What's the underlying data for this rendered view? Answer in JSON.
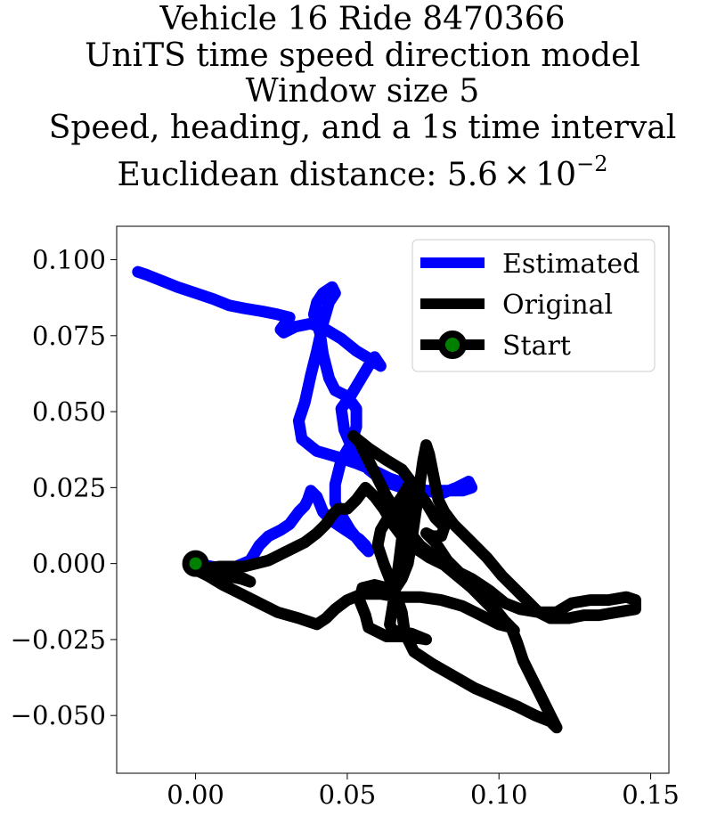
{
  "chart_data": {
    "type": "line",
    "title_lines": [
      "Vehicle 16 Ride 8470366",
      "UniTS time speed direction model",
      "Window size 5",
      "Speed, heading, and a 1s time interval"
    ],
    "title_metric": {
      "prefix": "Euclidean distance: ",
      "mantissa": "5.6",
      "times": "×",
      "base": "10",
      "exponent": "−2"
    },
    "xlabel": "",
    "ylabel": "",
    "xlim": [
      -0.026,
      0.156
    ],
    "ylim": [
      -0.069,
      0.111
    ],
    "x_ticks": [
      0.0,
      0.05,
      0.1,
      0.15
    ],
    "x_tick_labels": [
      "0.00",
      "0.05",
      "0.10",
      "0.15"
    ],
    "y_ticks": [
      -0.05,
      -0.025,
      0.0,
      0.025,
      0.05,
      0.075,
      0.1
    ],
    "y_tick_labels": [
      "−0.050",
      "−0.025",
      "0.000",
      "0.025",
      "0.050",
      "0.075",
      "0.100"
    ],
    "grid": false,
    "legend": {
      "position": "upper right",
      "entries": [
        "Estimated",
        "Original",
        "Start"
      ]
    },
    "colors": {
      "estimated": "#0000ff",
      "original": "#000000",
      "start_fill": "#008000",
      "start_edge": "#000000"
    },
    "series": [
      {
        "name": "Estimated",
        "points": [
          [
            0.0,
            0.0
          ],
          [
            0.011,
            -0.002
          ],
          [
            0.018,
            0.001
          ],
          [
            0.021,
            0.006
          ],
          [
            0.024,
            0.009
          ],
          [
            0.028,
            0.011
          ],
          [
            0.031,
            0.013
          ],
          [
            0.034,
            0.017
          ],
          [
            0.036,
            0.019
          ],
          [
            0.037,
            0.021
          ],
          [
            0.038,
            0.024
          ],
          [
            0.04,
            0.022
          ],
          [
            0.042,
            0.017
          ],
          [
            0.045,
            0.014
          ],
          [
            0.048,
            0.012
          ],
          [
            0.051,
            0.01
          ],
          [
            0.054,
            0.008
          ],
          [
            0.056,
            0.006
          ],
          [
            0.057,
            0.004
          ],
          [
            0.055,
            0.006
          ],
          [
            0.051,
            0.011
          ],
          [
            0.048,
            0.016
          ],
          [
            0.046,
            0.02
          ],
          [
            0.046,
            0.026
          ],
          [
            0.048,
            0.034
          ],
          [
            0.051,
            0.039
          ],
          [
            0.053,
            0.045
          ],
          [
            0.053,
            0.051
          ],
          [
            0.05,
            0.055
          ],
          [
            0.046,
            0.057
          ],
          [
            0.044,
            0.061
          ],
          [
            0.042,
            0.069
          ],
          [
            0.041,
            0.076
          ],
          [
            0.039,
            0.082
          ],
          [
            0.04,
            0.086
          ],
          [
            0.042,
            0.089
          ],
          [
            0.045,
            0.091
          ],
          [
            0.046,
            0.089
          ],
          [
            0.044,
            0.086
          ],
          [
            0.042,
            0.079
          ],
          [
            0.04,
            0.07
          ],
          [
            0.038,
            0.062
          ],
          [
            0.036,
            0.053
          ],
          [
            0.034,
            0.047
          ],
          [
            0.035,
            0.041
          ],
          [
            0.04,
            0.037
          ],
          [
            0.047,
            0.035
          ],
          [
            0.053,
            0.033
          ],
          [
            0.058,
            0.031
          ],
          [
            0.064,
            0.028
          ],
          [
            0.07,
            0.026
          ],
          [
            0.076,
            0.024
          ],
          [
            0.081,
            0.023
          ],
          [
            0.086,
            0.025
          ],
          [
            0.09,
            0.027
          ],
          [
            0.091,
            0.025
          ],
          [
            0.088,
            0.024
          ],
          [
            0.082,
            0.024
          ],
          [
            0.075,
            0.024
          ],
          [
            0.068,
            0.025
          ],
          [
            0.062,
            0.027
          ],
          [
            0.057,
            0.031
          ],
          [
            0.052,
            0.037
          ],
          [
            0.049,
            0.044
          ],
          [
            0.048,
            0.051
          ],
          [
            0.051,
            0.055
          ],
          [
            0.054,
            0.06
          ],
          [
            0.057,
            0.065
          ],
          [
            0.059,
            0.068
          ],
          [
            0.061,
            0.065
          ],
          [
            0.058,
            0.067
          ],
          [
            0.053,
            0.07
          ],
          [
            0.048,
            0.074
          ],
          [
            0.043,
            0.077
          ],
          [
            0.038,
            0.079
          ],
          [
            0.033,
            0.078
          ],
          [
            0.029,
            0.076
          ],
          [
            0.028,
            0.077
          ],
          [
            0.031,
            0.081
          ],
          [
            0.027,
            0.082
          ],
          [
            0.022,
            0.083
          ],
          [
            0.016,
            0.084
          ],
          [
            0.011,
            0.085
          ],
          [
            0.006,
            0.087
          ],
          [
            0.0,
            0.089
          ],
          [
            -0.006,
            0.091
          ],
          [
            -0.011,
            0.093
          ],
          [
            -0.016,
            0.095
          ],
          [
            -0.019,
            0.096
          ]
        ]
      },
      {
        "name": "Original",
        "points": [
          [
            0.0,
            0.0
          ],
          [
            0.006,
            -0.002
          ],
          [
            0.011,
            -0.003
          ],
          [
            0.016,
            -0.005
          ],
          [
            0.018,
            -0.006
          ],
          [
            0.015,
            -0.005
          ],
          [
            0.01,
            -0.004
          ],
          [
            0.005,
            -0.003
          ],
          [
            0.0,
            -0.002
          ],
          [
            0.008,
            -0.001
          ],
          [
            0.016,
            -0.001
          ],
          [
            0.024,
            0.001
          ],
          [
            0.03,
            0.004
          ],
          [
            0.036,
            0.007
          ],
          [
            0.04,
            0.01
          ],
          [
            0.043,
            0.013
          ],
          [
            0.045,
            0.016
          ],
          [
            0.047,
            0.018
          ],
          [
            0.05,
            0.018
          ],
          [
            0.053,
            0.021
          ],
          [
            0.056,
            0.025
          ],
          [
            0.059,
            0.022
          ],
          [
            0.062,
            0.018
          ],
          [
            0.065,
            0.013
          ],
          [
            0.068,
            0.009
          ],
          [
            0.071,
            0.006
          ],
          [
            0.074,
            0.004
          ],
          [
            0.077,
            0.002
          ],
          [
            0.081,
            0.0
          ],
          [
            0.085,
            -0.002
          ],
          [
            0.091,
            -0.005
          ],
          [
            0.097,
            -0.009
          ],
          [
            0.102,
            -0.013
          ],
          [
            0.107,
            -0.015
          ],
          [
            0.113,
            -0.016
          ],
          [
            0.119,
            -0.016
          ],
          [
            0.124,
            -0.013
          ],
          [
            0.13,
            -0.012
          ],
          [
            0.136,
            -0.012
          ],
          [
            0.142,
            -0.011
          ],
          [
            0.145,
            -0.012
          ],
          [
            0.145,
            -0.015
          ],
          [
            0.139,
            -0.016
          ],
          [
            0.133,
            -0.017
          ],
          [
            0.128,
            -0.017
          ],
          [
            0.123,
            -0.018
          ],
          [
            0.117,
            -0.018
          ],
          [
            0.113,
            -0.016
          ],
          [
            0.11,
            -0.013
          ],
          [
            0.106,
            -0.009
          ],
          [
            0.101,
            -0.004
          ],
          [
            0.096,
            0.002
          ],
          [
            0.09,
            0.008
          ],
          [
            0.085,
            0.013
          ],
          [
            0.082,
            0.017
          ],
          [
            0.08,
            0.021
          ],
          [
            0.079,
            0.026
          ],
          [
            0.078,
            0.031
          ],
          [
            0.077,
            0.036
          ],
          [
            0.076,
            0.039
          ],
          [
            0.075,
            0.034
          ],
          [
            0.074,
            0.027
          ],
          [
            0.073,
            0.02
          ],
          [
            0.072,
            0.013
          ],
          [
            0.071,
            0.006
          ],
          [
            0.07,
            0.0
          ],
          [
            0.068,
            -0.005
          ],
          [
            0.066,
            -0.008
          ],
          [
            0.063,
            -0.008
          ],
          [
            0.059,
            -0.007
          ],
          [
            0.055,
            -0.008
          ],
          [
            0.054,
            -0.012
          ],
          [
            0.056,
            -0.017
          ],
          [
            0.057,
            -0.021
          ],
          [
            0.063,
            -0.024
          ],
          [
            0.07,
            -0.024
          ],
          [
            0.076,
            -0.025
          ],
          [
            0.071,
            -0.023
          ],
          [
            0.065,
            -0.022
          ],
          [
            0.064,
            -0.02
          ],
          [
            0.065,
            -0.014
          ],
          [
            0.066,
            -0.007
          ],
          [
            0.067,
            0.0
          ],
          [
            0.068,
            0.008
          ],
          [
            0.069,
            0.014
          ],
          [
            0.07,
            0.02
          ],
          [
            0.073,
            0.024
          ],
          [
            0.076,
            0.02
          ],
          [
            0.079,
            0.015
          ],
          [
            0.082,
            0.012
          ],
          [
            0.081,
            0.009
          ],
          [
            0.078,
            0.009
          ],
          [
            0.076,
            0.01
          ],
          [
            0.079,
            0.007
          ],
          [
            0.083,
            0.001
          ],
          [
            0.088,
            -0.004
          ],
          [
            0.093,
            -0.009
          ],
          [
            0.098,
            -0.014
          ],
          [
            0.102,
            -0.019
          ],
          [
            0.105,
            -0.022
          ],
          [
            0.101,
            -0.018
          ],
          [
            0.096,
            -0.013
          ],
          [
            0.091,
            -0.008
          ],
          [
            0.085,
            -0.003
          ],
          [
            0.079,
            0.002
          ],
          [
            0.074,
            0.006
          ],
          [
            0.07,
            0.011
          ],
          [
            0.067,
            0.016
          ],
          [
            0.063,
            0.022
          ],
          [
            0.06,
            0.028
          ],
          [
            0.057,
            0.034
          ],
          [
            0.054,
            0.04
          ],
          [
            0.052,
            0.042
          ],
          [
            0.057,
            0.038
          ],
          [
            0.063,
            0.034
          ],
          [
            0.068,
            0.031
          ],
          [
            0.071,
            0.027
          ],
          [
            0.068,
            0.022
          ],
          [
            0.064,
            0.016
          ],
          [
            0.061,
            0.011
          ],
          [
            0.06,
            0.006
          ],
          [
            0.062,
            0.0
          ],
          [
            0.064,
            -0.005
          ],
          [
            0.066,
            -0.01
          ],
          [
            0.068,
            -0.016
          ],
          [
            0.069,
            -0.023
          ],
          [
            0.072,
            -0.029
          ],
          [
            0.078,
            -0.033
          ],
          [
            0.085,
            -0.037
          ],
          [
            0.092,
            -0.041
          ],
          [
            0.099,
            -0.044
          ],
          [
            0.106,
            -0.047
          ],
          [
            0.112,
            -0.05
          ],
          [
            0.117,
            -0.052
          ],
          [
            0.119,
            -0.054
          ],
          [
            0.117,
            -0.05
          ],
          [
            0.114,
            -0.044
          ],
          [
            0.111,
            -0.038
          ],
          [
            0.108,
            -0.032
          ],
          [
            0.106,
            -0.026
          ],
          [
            0.104,
            -0.021
          ],
          [
            0.1,
            -0.02
          ],
          [
            0.094,
            -0.017
          ],
          [
            0.088,
            -0.014
          ],
          [
            0.081,
            -0.012
          ],
          [
            0.074,
            -0.011
          ],
          [
            0.067,
            -0.011
          ],
          [
            0.061,
            -0.01
          ],
          [
            0.055,
            -0.01
          ],
          [
            0.05,
            -0.012
          ],
          [
            0.046,
            -0.015
          ],
          [
            0.043,
            -0.018
          ],
          [
            0.04,
            -0.02
          ],
          [
            0.034,
            -0.018
          ],
          [
            0.027,
            -0.016
          ],
          [
            0.021,
            -0.013
          ],
          [
            0.015,
            -0.01
          ],
          [
            0.009,
            -0.007
          ],
          [
            0.004,
            -0.004
          ],
          [
            0.0,
            -0.002
          ]
        ]
      }
    ],
    "start": {
      "name": "Start",
      "x": 0.0,
      "y": 0.0
    }
  }
}
